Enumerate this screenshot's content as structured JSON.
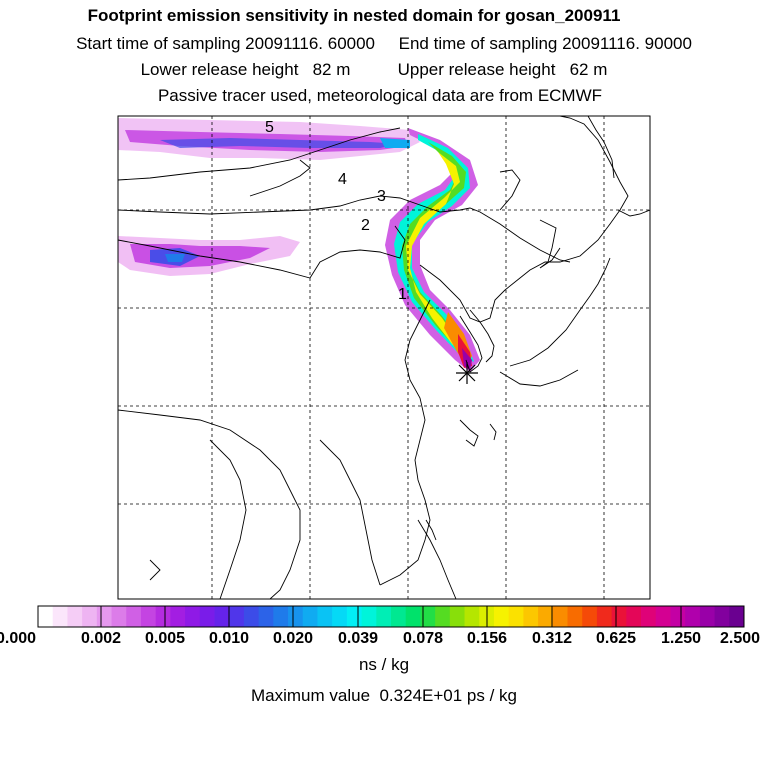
{
  "header": {
    "title": "Footprint emission sensitivity in nested domain for gosan_200911",
    "line1": "Start time of sampling 20091116. 60000     End time of sampling 20091116. 90000",
    "line2": "Lower release height   82 m          Upper release height   62 m",
    "line3": "Passive tracer used, meteorological data are from ECMWF"
  },
  "map": {
    "day_labels": [
      "1",
      "2",
      "3",
      "4",
      "5"
    ],
    "release_site_icon": "asterisk-icon"
  },
  "colorbar": {
    "tick_labels": [
      "0.000",
      "0.002",
      "0.005",
      "0.010",
      "0.020",
      "0.039",
      "0.078",
      "0.156",
      "0.312",
      "0.625",
      "1.250",
      "2.500"
    ],
    "colors": [
      "#ffffff",
      "#fbe6fb",
      "#f5cdf6",
      "#eeb4f2",
      "#e598ee",
      "#dc7ce9",
      "#d060e5",
      "#c444e2",
      "#b52ce0",
      "#a31ee2",
      "#8f1ae6",
      "#7a1ce9",
      "#6523ea",
      "#5036ea",
      "#3c4ce8",
      "#2c63e8",
      "#1f7bea",
      "#1793ee",
      "#10abf1",
      "#0ac3f4",
      "#05d9f6",
      "#02eff5",
      "#00f4da",
      "#00eeb5",
      "#00e891",
      "#00e26b",
      "#22de46",
      "#55dc22",
      "#88df0a",
      "#b5e600",
      "#dbee00",
      "#f6f200",
      "#fbe100",
      "#fcc700",
      "#fbaa00",
      "#fa8c00",
      "#f86c00",
      "#f54a08",
      "#f02a1c",
      "#ea1238",
      "#e40658",
      "#df0278",
      "#d40092",
      "#c400a4",
      "#b000ac",
      "#9900a8",
      "#82009e",
      "#6a0090"
    ],
    "units": "ns / kg",
    "max_value": "Maximum value  0.324E+01 ps / kg"
  }
}
